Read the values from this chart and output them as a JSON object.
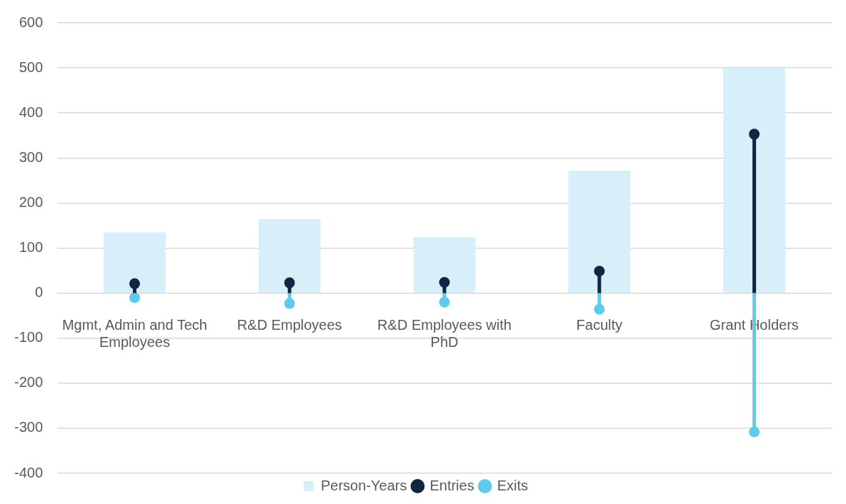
{
  "chart_data": {
    "type": "bar",
    "categories": [
      "Mgmt, Admin and Tech Employees",
      "R&D Employees",
      "R&D Employees with PhD",
      "Faculty",
      "Grant Holders"
    ],
    "series": [
      {
        "name": "Person-Years",
        "color": "#d6eff8",
        "values": [
          135,
          164,
          124,
          272,
          500
        ]
      },
      {
        "name": "Entries",
        "type": "lollipop",
        "color": "#0e2841",
        "values": [
          21,
          23,
          24,
          49,
          353
        ]
      },
      {
        "name": "Exits",
        "type": "lollipop",
        "color": "#5ecbeb",
        "values": [
          -10,
          -23,
          -20,
          -36,
          -308
        ]
      }
    ],
    "ylim": [
      -400,
      600
    ],
    "yticks": [
      -400,
      -300,
      -200,
      -100,
      0,
      100,
      200,
      300,
      400,
      500,
      600
    ],
    "grid": "y",
    "legend": "bottom",
    "marker": "circle"
  }
}
